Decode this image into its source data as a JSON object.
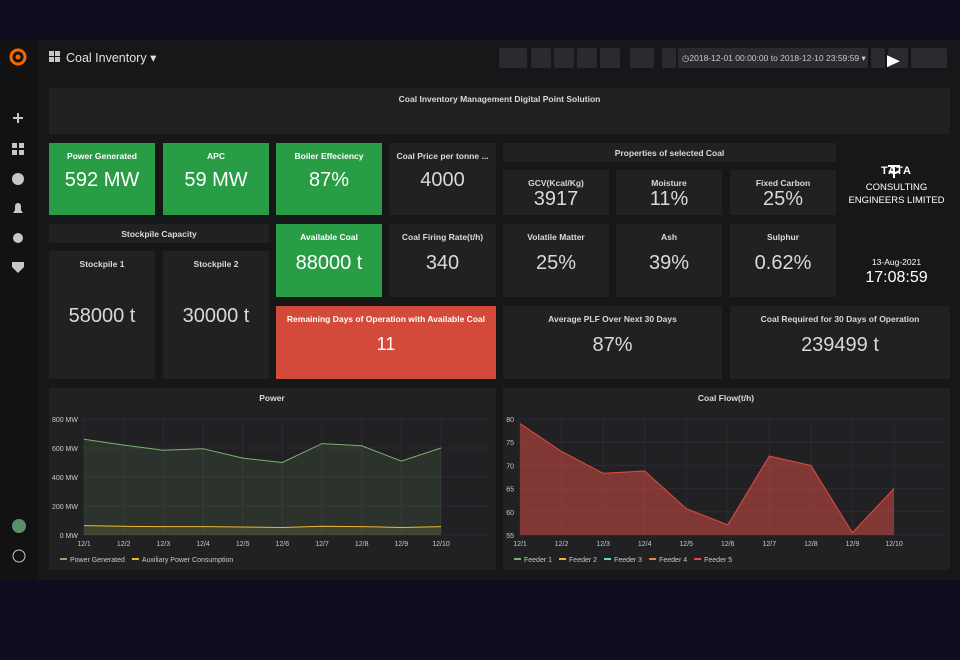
{
  "header": {
    "dashboard": "Coal Inventory",
    "time_range": "2018-12-01 00:00:00 to 2018-12-10 23:59:59"
  },
  "banner": {
    "title": "Coal Inventory Management Digital Point Solution"
  },
  "panels": [
    {
      "title": "Power Generated",
      "value": "592 MW"
    },
    {
      "title": "APC",
      "value": "59 MW"
    },
    {
      "title": "Boiler Effeciency",
      "value": "87%"
    },
    {
      "title": "Coal Price per tonne ...",
      "value": "4000"
    },
    {
      "title": "GCV(Kcal/Kg)",
      "value": "3917"
    },
    {
      "title": "Moisture",
      "value": "11%"
    },
    {
      "title": "Fixed Carbon",
      "value": "25%"
    },
    {
      "title": "Available Coal",
      "value": "88000 t"
    },
    {
      "title": "Coal Firing Rate(t/h)",
      "value": "340"
    },
    {
      "title": "Volatile Matter",
      "value": "25%"
    },
    {
      "title": "Ash",
      "value": "39%"
    },
    {
      "title": "Sulphur",
      "value": "0.62%"
    },
    {
      "title": "Stockpile 1",
      "value": "58000 t"
    },
    {
      "title": "Stockpile 2",
      "value": "30000 t"
    },
    {
      "title": "Remaining Days of Operation with Available Coal",
      "value": "11"
    },
    {
      "title": "Average PLF Over Next 30 Days",
      "value": "87%"
    },
    {
      "title": "Coal Required for 30 Days of Operation",
      "value": "239499 t"
    }
  ],
  "section_headers": [
    "Properties of selected Coal",
    "Stockpile Capacity"
  ],
  "logo": {
    "brand": "TATA",
    "line1": "CONSULTING",
    "line2": "ENGINEERS LIMITED"
  },
  "clock": {
    "date": "13-Aug-2021",
    "time": "17:08:59"
  },
  "chart_data": [
    {
      "type": "line",
      "title": "Power",
      "categories": [
        "12/1",
        "12/2",
        "12/3",
        "12/4",
        "12/5",
        "12/6",
        "12/7",
        "12/8",
        "12/9",
        "12/10"
      ],
      "ylim": [
        0,
        800
      ],
      "yticks": [
        {
          "value": 0,
          "label": "0 MW"
        },
        {
          "value": 200,
          "label": "200 MW"
        },
        {
          "value": 400,
          "label": "400 MW"
        },
        {
          "value": 600,
          "label": "600 MW"
        },
        {
          "value": 800,
          "label": "800 MW"
        }
      ],
      "series": [
        {
          "name": "Power Generated",
          "color": "#7eb26d",
          "values": [
            660,
            620,
            585,
            595,
            530,
            500,
            630,
            615,
            510,
            600
          ]
        },
        {
          "name": "Auxiliary Power Consumption",
          "color": "#eab839",
          "values": [
            65,
            60,
            58,
            58,
            55,
            52,
            60,
            58,
            52,
            58
          ]
        }
      ]
    },
    {
      "type": "line",
      "title": "Coal Flow(t/h)",
      "categories": [
        "12/1",
        "12/2",
        "12/3",
        "12/4",
        "12/5",
        "12/6",
        "12/7",
        "12/8",
        "12/9",
        "12/10"
      ],
      "ylim": [
        55,
        80
      ],
      "yticks": [
        55,
        60,
        65,
        70,
        75,
        80
      ],
      "series": [
        {
          "name": "Feeder 1",
          "color": "#7eb26d",
          "values": [
            null,
            null,
            null,
            null,
            null,
            null,
            null,
            null,
            null,
            null
          ]
        },
        {
          "name": "Feeder 2",
          "color": "#eab839",
          "values": [
            null,
            null,
            null,
            null,
            null,
            null,
            null,
            null,
            null,
            null
          ]
        },
        {
          "name": "Feeder 3",
          "color": "#6ed0e0",
          "values": [
            null,
            null,
            null,
            null,
            null,
            null,
            null,
            null,
            null,
            null
          ]
        },
        {
          "name": "Feeder 4",
          "color": "#ef843c",
          "values": [
            null,
            null,
            null,
            null,
            null,
            null,
            null,
            null,
            null,
            null
          ]
        },
        {
          "name": "Feeder 5",
          "color": "#e24d42",
          "values": [
            79,
            73,
            68.3,
            68.8,
            60.7,
            57.2,
            72,
            70,
            55.5,
            65
          ]
        }
      ]
    }
  ]
}
